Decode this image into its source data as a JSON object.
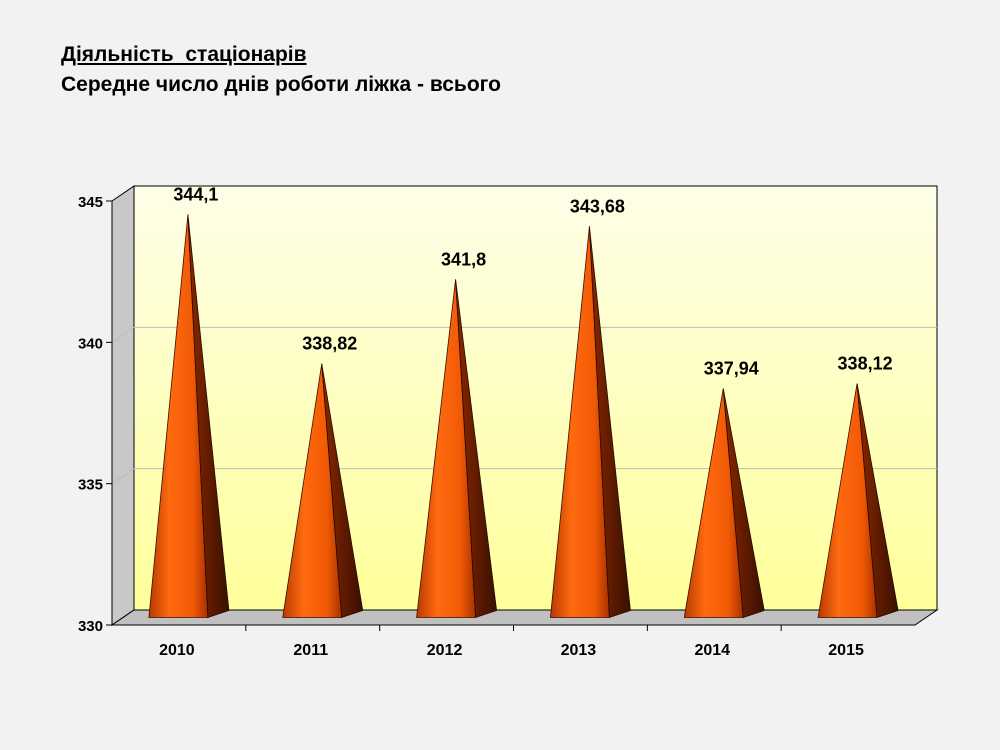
{
  "title": {
    "line1": "Діяльність  стаціонарів",
    "line2": "Середне число днів роботи ліжка - всього"
  },
  "chart_data": {
    "type": "bar",
    "bar_shape": "cone",
    "categories": [
      "2010",
      "2011",
      "2012",
      "2013",
      "2014",
      "2015"
    ],
    "values": [
      344.1,
      338.82,
      341.8,
      343.68,
      337.94,
      338.12
    ],
    "data_labels": [
      "344,1",
      "338,82",
      "341,8",
      "343,68",
      "337,94",
      "338,12"
    ],
    "y_ticks": [
      330,
      335,
      340,
      345
    ],
    "ylim": [
      330,
      345
    ],
    "grid": true,
    "legend": "none",
    "colors": {
      "wall_top": "#fefee8",
      "wall_bottom": "#ffff9a",
      "floor": "#c0c0c0",
      "bar_light": "#ff6a10",
      "bar_dark": "#5a1800",
      "gridline": "#bcbcbc"
    }
  }
}
